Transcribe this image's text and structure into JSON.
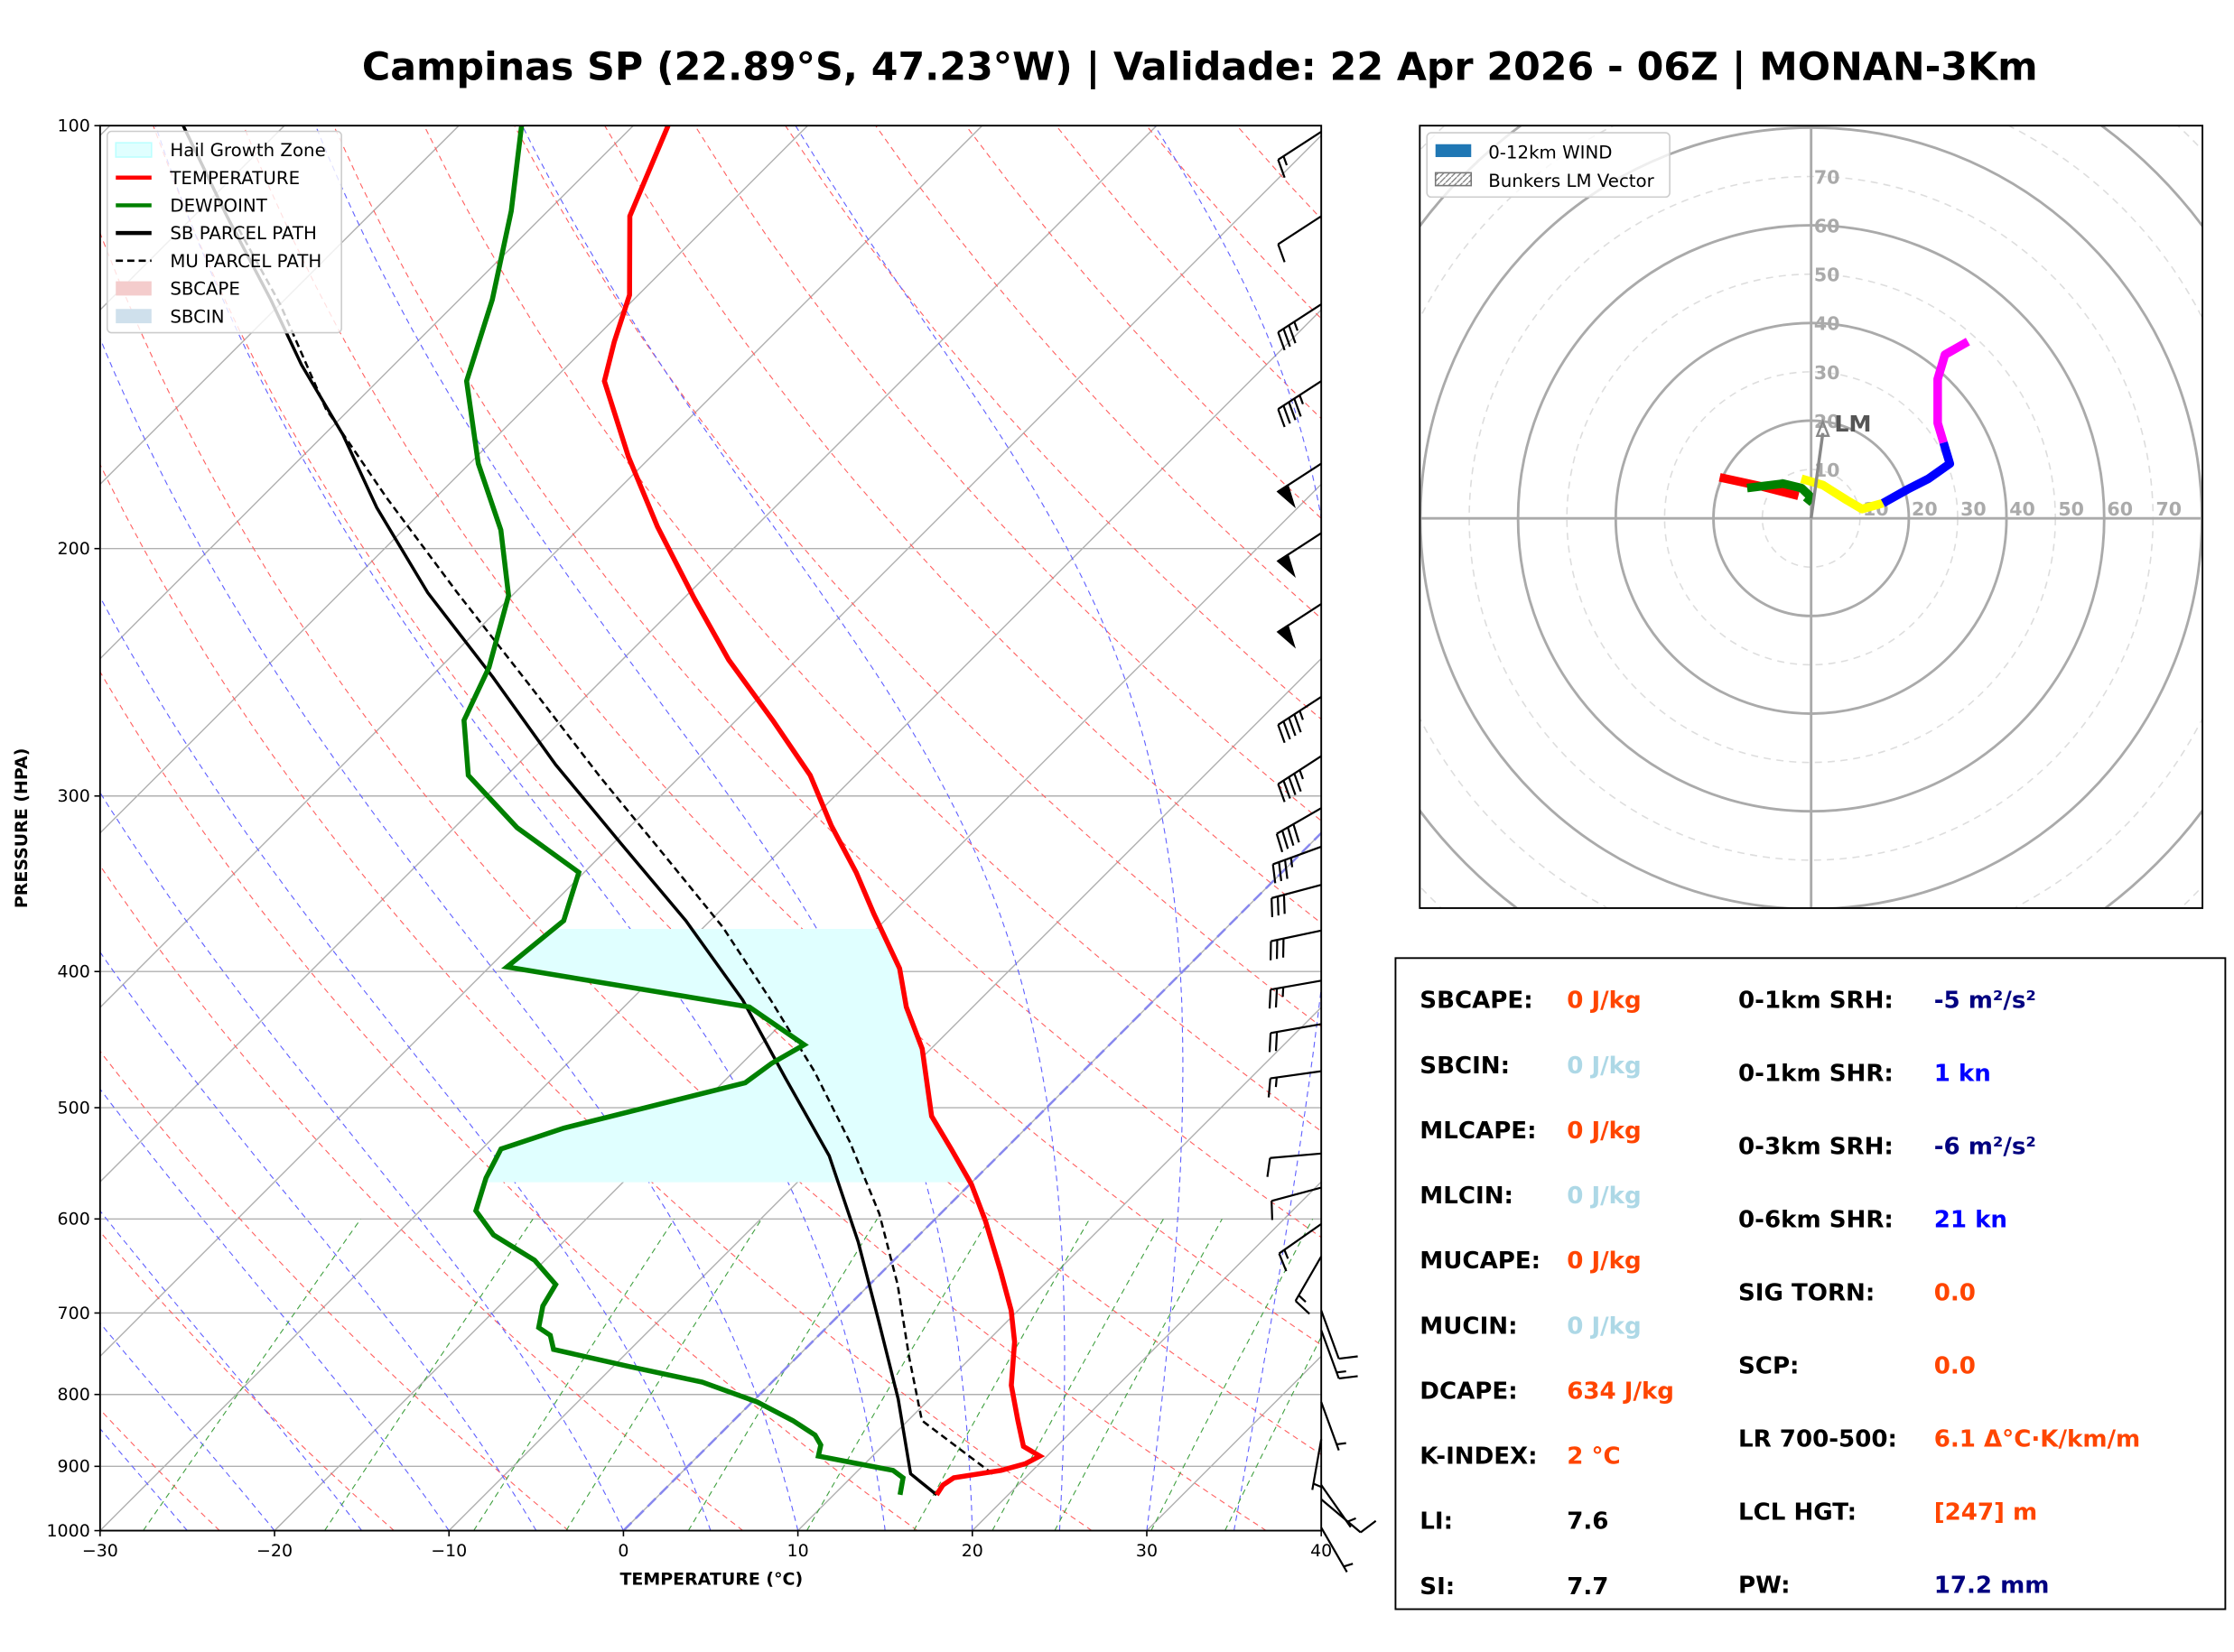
{
  "title": "Campinas SP (22.89°S, 47.23°W) | Validade: 22 Apr 2026 - 06Z | MONAN-3Km",
  "chart_data": [
    {
      "type": "skewt",
      "xlabel": "TEMPERATURE (°C)",
      "ylabel": "PRESSURE (HPA)",
      "xlim": [
        -30,
        40
      ],
      "ylim": [
        1000,
        100
      ],
      "xticks": [
        "−30",
        "−20",
        "−10",
        "0",
        "10",
        "20",
        "30",
        "40"
      ],
      "xtick_values": [
        -30,
        -20,
        -10,
        0,
        10,
        20,
        30,
        40
      ],
      "yticks": [
        "100",
        "200",
        "300",
        "400",
        "500",
        "600",
        "700",
        "800",
        "900",
        "1000"
      ],
      "ytick_values": [
        100,
        200,
        300,
        400,
        500,
        600,
        700,
        800,
        900,
        1000
      ],
      "legend": [
        {
          "label": "Hail Growth Zone",
          "kind": "patch",
          "color": "#e0ffff"
        },
        {
          "label": "TEMPERATURE",
          "kind": "line",
          "color": "#ff0000"
        },
        {
          "label": "DEWPOINT",
          "kind": "line",
          "color": "#008000"
        },
        {
          "label": "SB PARCEL PATH",
          "kind": "line",
          "color": "#000000"
        },
        {
          "label": "MU PARCEL PATH",
          "kind": "dash",
          "color": "#000000"
        },
        {
          "label": "SBCAPE",
          "kind": "patch",
          "color": "#f4cccc"
        },
        {
          "label": "SBCIN",
          "kind": "patch",
          "color": "#cfe0ec"
        }
      ],
      "temperature": [
        [
          943,
          15.9
        ],
        [
          928,
          15.7
        ],
        [
          917,
          15.9
        ],
        [
          906,
          18.2
        ],
        [
          896,
          19.2
        ],
        [
          885,
          19.6
        ],
        [
          871,
          18.1
        ],
        [
          835,
          16.3
        ],
        [
          788,
          13.9
        ],
        [
          734,
          11.6
        ],
        [
          697,
          9.6
        ],
        [
          653,
          6.7
        ],
        [
          602,
          3.0
        ],
        [
          567,
          0.1
        ],
        [
          535,
          -3.1
        ],
        [
          507,
          -6.1
        ],
        [
          454,
          -10.5
        ],
        [
          424,
          -13.8
        ],
        [
          398,
          -16.4
        ],
        [
          364,
          -21.0
        ],
        [
          340,
          -24.4
        ],
        [
          315,
          -28.5
        ],
        [
          290,
          -32.6
        ],
        [
          265,
          -37.9
        ],
        [
          240,
          -43.9
        ],
        [
          217,
          -49.4
        ],
        [
          193,
          -55.6
        ],
        [
          172,
          -61.3
        ],
        [
          152,
          -67.0
        ],
        [
          142.5,
          -68.7
        ],
        [
          132,
          -70.5
        ],
        [
          116,
          -75.0
        ],
        [
          100,
          -78.0
        ]
      ],
      "dewpoint": [
        [
          943,
          13.8
        ],
        [
          917,
          13.0
        ],
        [
          906,
          12.0
        ],
        [
          896,
          9.6
        ],
        [
          885,
          6.9
        ],
        [
          869,
          6.4
        ],
        [
          855,
          5.5
        ],
        [
          835,
          3.4
        ],
        [
          810,
          0.3
        ],
        [
          784,
          -4.0
        ],
        [
          764,
          -9.1
        ],
        [
          743,
          -14.4
        ],
        [
          726,
          -15.4
        ],
        [
          717,
          -16.5
        ],
        [
          692,
          -17.5
        ],
        [
          668,
          -18.0
        ],
        [
          642,
          -20.6
        ],
        [
          616,
          -24.4
        ],
        [
          592,
          -26.8
        ],
        [
          561,
          -28.1
        ],
        [
          535,
          -28.9
        ],
        [
          517,
          -26.5
        ],
        [
          480,
          -18.7
        ],
        [
          465,
          -18.3
        ],
        [
          451,
          -17.5
        ],
        [
          424,
          -22.8
        ],
        [
          397,
          -39.0
        ],
        [
          368,
          -38.4
        ],
        [
          340,
          -40.3
        ],
        [
          316,
          -46.4
        ],
        [
          290,
          -52.2
        ],
        [
          265,
          -55.6
        ],
        [
          243,
          -57.2
        ],
        [
          216,
          -60.2
        ],
        [
          194,
          -64.4
        ],
        [
          174,
          -69.5
        ],
        [
          152,
          -74.9
        ],
        [
          133,
          -78.1
        ],
        [
          115,
          -82.1
        ],
        [
          100,
          -86.4
        ]
      ],
      "sb_parcel": [
        [
          943,
          15.9
        ],
        [
          911,
          13.2
        ],
        [
          806,
          8.2
        ],
        [
          709,
          2.6
        ],
        [
          623,
          -3.1
        ],
        [
          541,
          -9.7
        ],
        [
          476,
          -16.7
        ],
        [
          419,
          -23.6
        ],
        [
          368,
          -31.4
        ],
        [
          324,
          -39.6
        ],
        [
          285,
          -47.8
        ],
        [
          247,
          -56.4
        ],
        [
          215,
          -65.0
        ],
        [
          187,
          -72.8
        ],
        [
          166,
          -78.9
        ],
        [
          148,
          -85.3
        ],
        [
          133,
          -90.8
        ],
        [
          116,
          -98.1
        ],
        [
          100,
          -105.8
        ]
      ],
      "mu_parcel": [
        [
          911,
          17.9
        ],
        [
          835,
          10.8
        ],
        [
          752,
          6.4
        ],
        [
          668,
          1.6
        ],
        [
          595,
          -3.5
        ],
        [
          529,
          -9.3
        ],
        [
          471,
          -15.4
        ],
        [
          419,
          -22.0
        ],
        [
          372,
          -28.9
        ],
        [
          331,
          -36.3
        ],
        [
          291,
          -44.5
        ],
        [
          250,
          -53.9
        ],
        [
          215,
          -63.3
        ],
        [
          184,
          -72.8
        ],
        [
          159,
          -81.4
        ],
        [
          134,
          -90.0
        ],
        [
          118,
          -96.9
        ]
      ],
      "hail_growth_zone": {
        "p_bottom": 565,
        "p_top": 372
      },
      "wind_barbs": [
        [
          101,
          15,
          237
        ],
        [
          116,
          10,
          237
        ],
        [
          134,
          35,
          237
        ],
        [
          152,
          45,
          237
        ],
        [
          174,
          50,
          237
        ],
        [
          195,
          50,
          237
        ],
        [
          219,
          50,
          237
        ],
        [
          255,
          45,
          237
        ],
        [
          281,
          45,
          237
        ],
        [
          306,
          40,
          240
        ],
        [
          326,
          35,
          250
        ],
        [
          347,
          30,
          255
        ],
        [
          374,
          30,
          258
        ],
        [
          406,
          25,
          260
        ],
        [
          436,
          20,
          260
        ],
        [
          471,
          15,
          262
        ],
        [
          539,
          10,
          265
        ],
        [
          570,
          10,
          255
        ],
        [
          605,
          15,
          235
        ],
        [
          638,
          15,
          210
        ],
        [
          697,
          10,
          160
        ],
        [
          720,
          15,
          160
        ],
        [
          810,
          5,
          160
        ],
        [
          861,
          5,
          190
        ],
        [
          928,
          5,
          145
        ],
        [
          950,
          10,
          130
        ],
        [
          995,
          5,
          150
        ]
      ]
    },
    {
      "type": "hodograph",
      "legend": [
        {
          "label": "0-12km WIND",
          "color": "#1f77b4"
        },
        {
          "label": "Bunkers LM Vector",
          "color": "#aaaaaa"
        }
      ],
      "ring_labels": [
        "10",
        "20",
        "30",
        "40",
        "50",
        "60",
        "70"
      ],
      "ring_values": [
        10,
        20,
        30,
        40,
        50,
        60,
        70
      ],
      "max_speed": 80,
      "segments": [
        {
          "color": "#ff0000",
          "points": [
            [
              -18.7,
              8.4
            ],
            [
              -10,
              6.5
            ],
            [
              -2.6,
              4.6
            ]
          ]
        },
        {
          "color": "#008000",
          "points": [
            [
              -13.1,
              6.2
            ],
            [
              -5.7,
              7.1
            ],
            [
              -2,
              6.2
            ],
            [
              0,
              4.3
            ],
            [
              -1,
              3.1
            ]
          ]
        },
        {
          "color": "#ffff00",
          "points": [
            [
              -2,
              8.1
            ],
            [
              2.4,
              6.8
            ],
            [
              7.3,
              3.7
            ],
            [
              10.4,
              1.9
            ],
            [
              14.7,
              3.1
            ]
          ]
        },
        {
          "color": "#0000ff",
          "points": [
            [
              14.7,
              3.1
            ],
            [
              19.7,
              5.9
            ],
            [
              24,
              8.1
            ],
            [
              28.4,
              11.2
            ],
            [
              27.1,
              15.5
            ]
          ]
        },
        {
          "color": "#ff00ff",
          "points": [
            [
              27.1,
              15.5
            ],
            [
              25.9,
              19.5
            ],
            [
              25.9,
              28.5
            ],
            [
              27.4,
              33.5
            ],
            [
              32.1,
              36.2
            ]
          ]
        }
      ],
      "lm_vector": [
        2.4,
        19.8
      ],
      "lm_label": "LM"
    }
  ],
  "indices": {
    "left": [
      {
        "label": "SBCAPE:",
        "value": "0 J/kg",
        "color": "#ff4500"
      },
      {
        "label": "SBCIN:",
        "value": "0 J/kg",
        "color": "#add8e6"
      },
      {
        "label": "MLCAPE:",
        "value": "0 J/kg",
        "color": "#ff4500"
      },
      {
        "label": "MLCIN:",
        "value": "0 J/kg",
        "color": "#add8e6"
      },
      {
        "label": "MUCAPE:",
        "value": "0 J/kg",
        "color": "#ff4500"
      },
      {
        "label": "MUCIN:",
        "value": "0 J/kg",
        "color": "#add8e6"
      },
      {
        "label": "DCAPE:",
        "value": "634 J/kg",
        "color": "#ff4500"
      },
      {
        "label": "K-INDEX:",
        "value": "2 °C",
        "color": "#ff4500"
      },
      {
        "label": "LI:",
        "value": "7.6",
        "color": "#000000"
      },
      {
        "label": "SI:",
        "value": "7.7",
        "color": "#000000"
      }
    ],
    "right": [
      {
        "label": "0-1km SRH:",
        "value": "-5 m²/s²",
        "color": "#000080"
      },
      {
        "label": "0-1km SHR:",
        "value": "1 kn",
        "color": "#0000ff"
      },
      {
        "label": "0-3km SRH:",
        "value": "-6 m²/s²",
        "color": "#000080"
      },
      {
        "label": "0-6km SHR:",
        "value": "21 kn",
        "color": "#0000ff"
      },
      {
        "label": "SIG TORN:",
        "value": "0.0",
        "color": "#ff4500"
      },
      {
        "label": "SCP:",
        "value": "0.0",
        "color": "#ff4500"
      },
      {
        "label": "LR 700-500:",
        "value": "6.1 Δ°C·K/km/m",
        "color": "#ff4500"
      },
      {
        "label": "LCL HGT:",
        "value": "[247] m",
        "color": "#ff4500"
      },
      {
        "label": "PW:",
        "value": "17.2 mm",
        "color": "#000080"
      }
    ]
  }
}
